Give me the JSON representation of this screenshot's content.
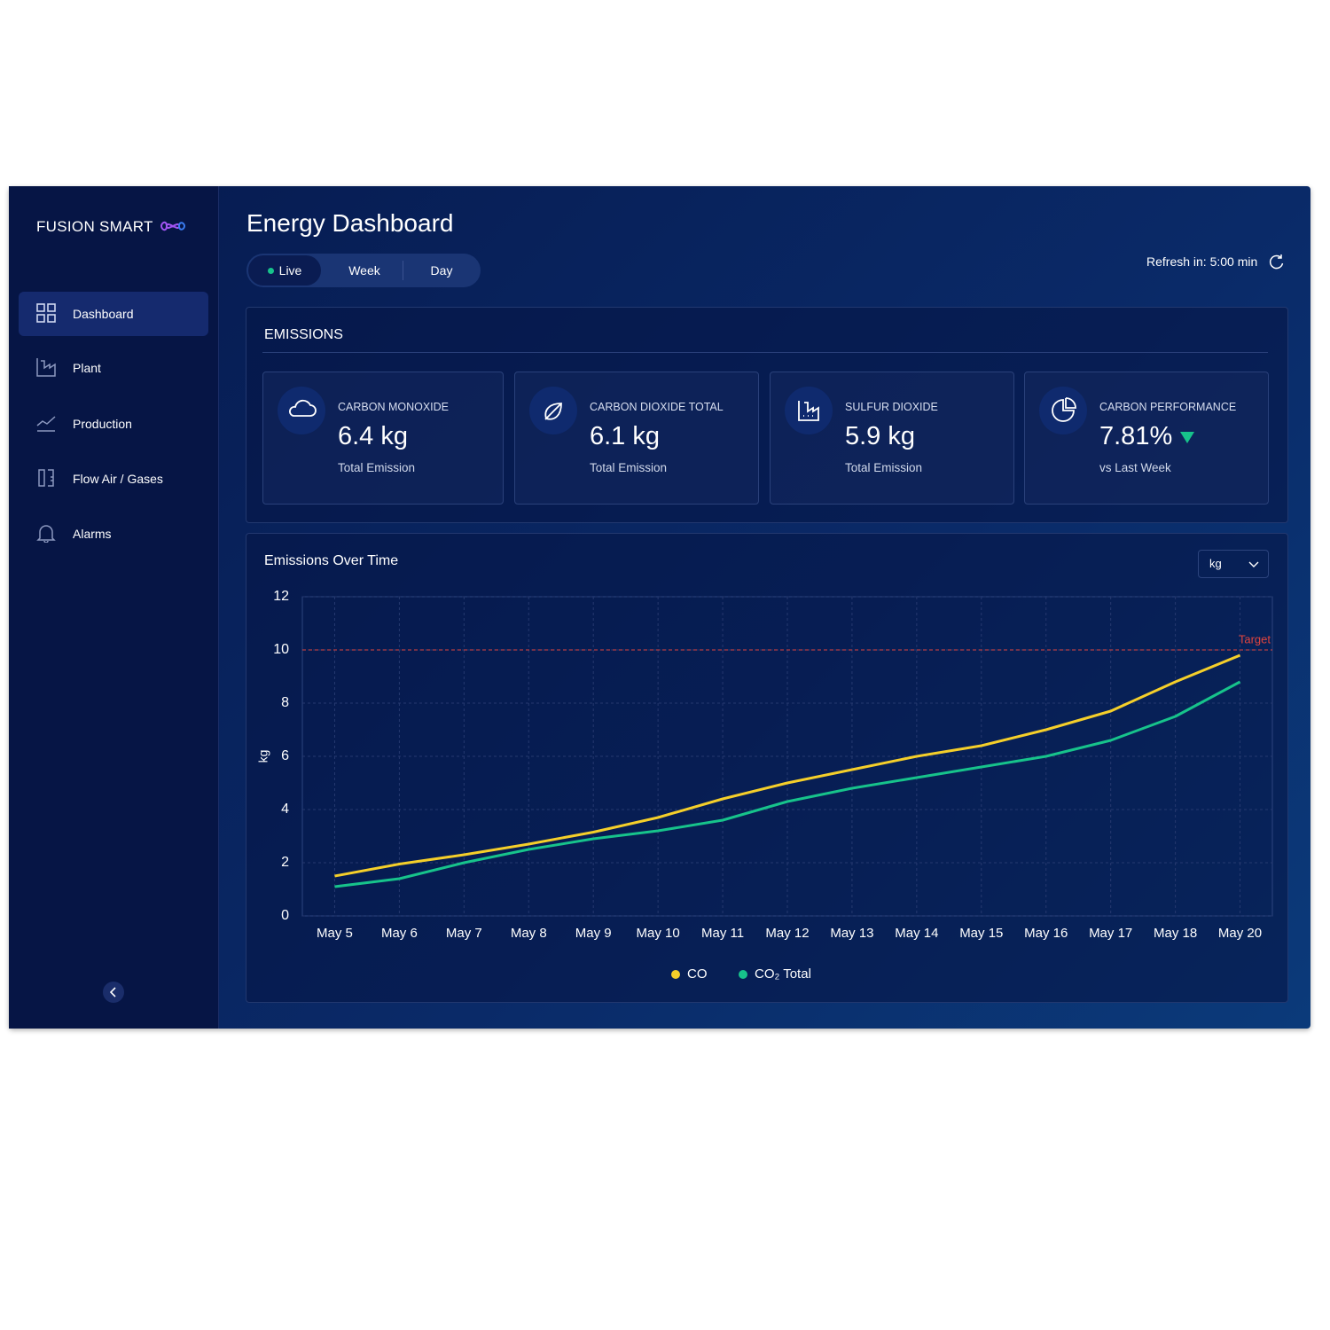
{
  "sidebar": {
    "brand": "FUSION SMART",
    "nav": [
      "Dashboard",
      "Plant",
      "Production",
      "Flow Air / Gases",
      "Alarms"
    ]
  },
  "header": {
    "title": "Energy Dashboard",
    "tabs": [
      "Live",
      "Week",
      "Day"
    ],
    "refresh": "Refresh in: 5:00 min"
  },
  "emissions": {
    "title": "EMISSIONS",
    "cards": [
      {
        "label": "CARBON MONOXIDE",
        "value": "6.4 kg",
        "caption": "Total Emission"
      },
      {
        "label": "CARBON DIOXIDE TOTAL",
        "value": "6.1 kg",
        "caption": "Total Emission"
      },
      {
        "label": "SULFUR DIOXIDE",
        "value": "5.9 kg",
        "caption": "Total Emission"
      },
      {
        "label": "CARBON PERFORMANCE",
        "value": "7.81%",
        "caption": "vs Last Week"
      }
    ]
  },
  "chart_data": {
    "type": "line",
    "title": "Emissions Over Time",
    "unit_select": "kg",
    "y_label": "kg",
    "categories": [
      "May 5",
      "May 6",
      "May 7",
      "May 8",
      "May 9",
      "May 10",
      "May 11",
      "May 12",
      "May 13",
      "May 14",
      "May 15",
      "May 16",
      "May 17",
      "May 18",
      "May 20"
    ],
    "series": [
      {
        "name": "CO",
        "color": "#f5cf2a",
        "values": [
          1.5,
          1.95,
          2.3,
          2.7,
          3.15,
          3.7,
          4.4,
          5.0,
          5.5,
          6.0,
          6.4,
          7.0,
          7.7,
          8.8,
          9.8
        ]
      },
      {
        "name": "CO₂ Total",
        "color": "#17c38b",
        "values": [
          1.1,
          1.4,
          2.0,
          2.5,
          2.9,
          3.2,
          3.6,
          4.3,
          4.8,
          5.2,
          5.6,
          6.0,
          6.6,
          7.5,
          8.8
        ]
      }
    ],
    "target": {
      "value": 10,
      "label": "Target",
      "color": "#e0443e"
    },
    "ylim": [
      0,
      12
    ],
    "yticks": [
      0,
      2,
      4,
      6,
      8,
      10,
      12
    ],
    "grid": true
  }
}
